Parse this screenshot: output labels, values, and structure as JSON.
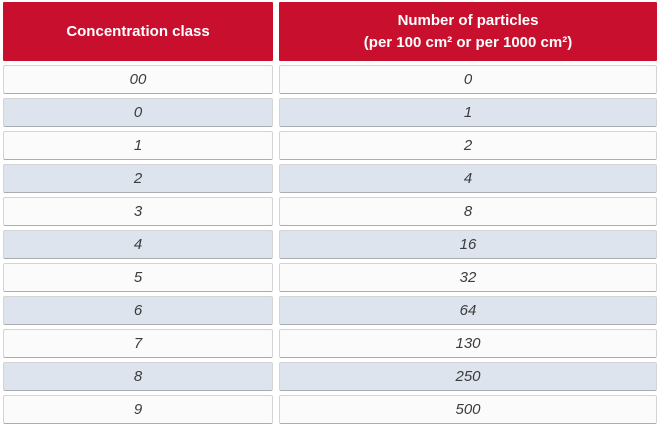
{
  "colors": {
    "header_background": "#c8102e",
    "header_text": "#ffffff",
    "row_white": "#fbfbfb",
    "row_blue": "#dde4ee",
    "cell_border": "#d4d4d4",
    "data_text": "#3c3c3c"
  },
  "chart_data": {
    "type": "table",
    "columns": [
      "Concentration class",
      "Number of particles\n(per 100 cm² or per 1000 cm²)"
    ],
    "rows": [
      [
        "00",
        "0"
      ],
      [
        "0",
        "1"
      ],
      [
        "1",
        "2"
      ],
      [
        "2",
        "4"
      ],
      [
        "3",
        "8"
      ],
      [
        "4",
        "16"
      ],
      [
        "5",
        "32"
      ],
      [
        "6",
        "64"
      ],
      [
        "7",
        "130"
      ],
      [
        "8",
        "250"
      ],
      [
        "9",
        "500"
      ]
    ],
    "layout": {
      "header_style": "red background, white bold centered text",
      "body_style": "italic centered values, alternating white and light-blue rows",
      "grid": "separated cells with thin gray borders and white gaps"
    }
  }
}
